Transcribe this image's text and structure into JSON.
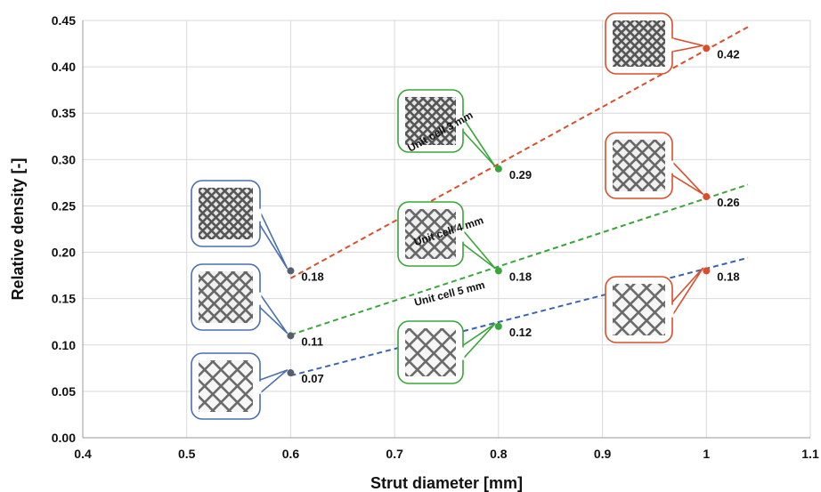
{
  "chart_data": {
    "type": "scatter",
    "title": "",
    "xlabel": "Strut diameter [mm]",
    "ylabel": "Relative density [-]",
    "xlim": [
      0.4,
      1.1
    ],
    "ylim": [
      0.0,
      0.45
    ],
    "x_ticks": [
      "0.4",
      "0.5",
      "0.6",
      "0.7",
      "0.8",
      "0.9",
      "1",
      "1.1"
    ],
    "y_ticks": [
      "0.00",
      "0.05",
      "0.10",
      "0.15",
      "0.20",
      "0.25",
      "0.30",
      "0.35",
      "0.40",
      "0.45"
    ],
    "grid": true,
    "series": [
      {
        "name": "Unit cell 3 mm",
        "color": "#d94f2b",
        "x": [
          0.6,
          0.8,
          1.0
        ],
        "y": [
          0.18,
          0.29,
          0.42
        ],
        "labels": [
          "0.18",
          "0.29",
          "0.42"
        ],
        "trend": [
          [
            0.6,
            0.172
          ],
          [
            1.04,
            0.443
          ]
        ]
      },
      {
        "name": "Unit cell 4 mm",
        "color": "#3aa53a",
        "x": [
          0.6,
          0.8,
          1.0
        ],
        "y": [
          0.11,
          0.18,
          0.26
        ],
        "labels": [
          "0.11",
          "0.18",
          "0.26"
        ],
        "trend": [
          [
            0.6,
            0.111
          ],
          [
            1.04,
            0.273
          ]
        ]
      },
      {
        "name": "Unit cell 5 mm",
        "color": "#3a64b0",
        "x": [
          0.6,
          0.8,
          1.0
        ],
        "y": [
          0.07,
          0.12,
          0.18
        ],
        "labels": [
          "0.07",
          "0.12",
          "0.18"
        ],
        "trend": [
          [
            0.6,
            0.067
          ],
          [
            1.04,
            0.194
          ]
        ]
      }
    ],
    "marker_colors": {
      "0.6": "#555f6e",
      "0.8": "#3aa53a",
      "1.0": "#d94f2b"
    },
    "callouts": [
      {
        "target": "cell3-d06",
        "border": "#4a6fb0",
        "pattern": "lattice-dense"
      },
      {
        "target": "cell4-d06",
        "border": "#4a6fb0",
        "pattern": "lattice-medium"
      },
      {
        "target": "cell5-d06",
        "border": "#4a6fb0",
        "pattern": "lattice-open"
      },
      {
        "target": "cell3-d08",
        "border": "#3aa53a",
        "pattern": "lattice-dense"
      },
      {
        "target": "cell4-d08",
        "border": "#3aa53a",
        "pattern": "lattice-medium"
      },
      {
        "target": "cell5-d08",
        "border": "#3aa53a",
        "pattern": "lattice-open"
      },
      {
        "target": "cell3-d10",
        "border": "#d94f2b",
        "pattern": "lattice-dense"
      },
      {
        "target": "cell4-d10",
        "border": "#d94f2b",
        "pattern": "lattice-medium"
      },
      {
        "target": "cell5-d10",
        "border": "#d94f2b",
        "pattern": "lattice-open"
      }
    ]
  }
}
